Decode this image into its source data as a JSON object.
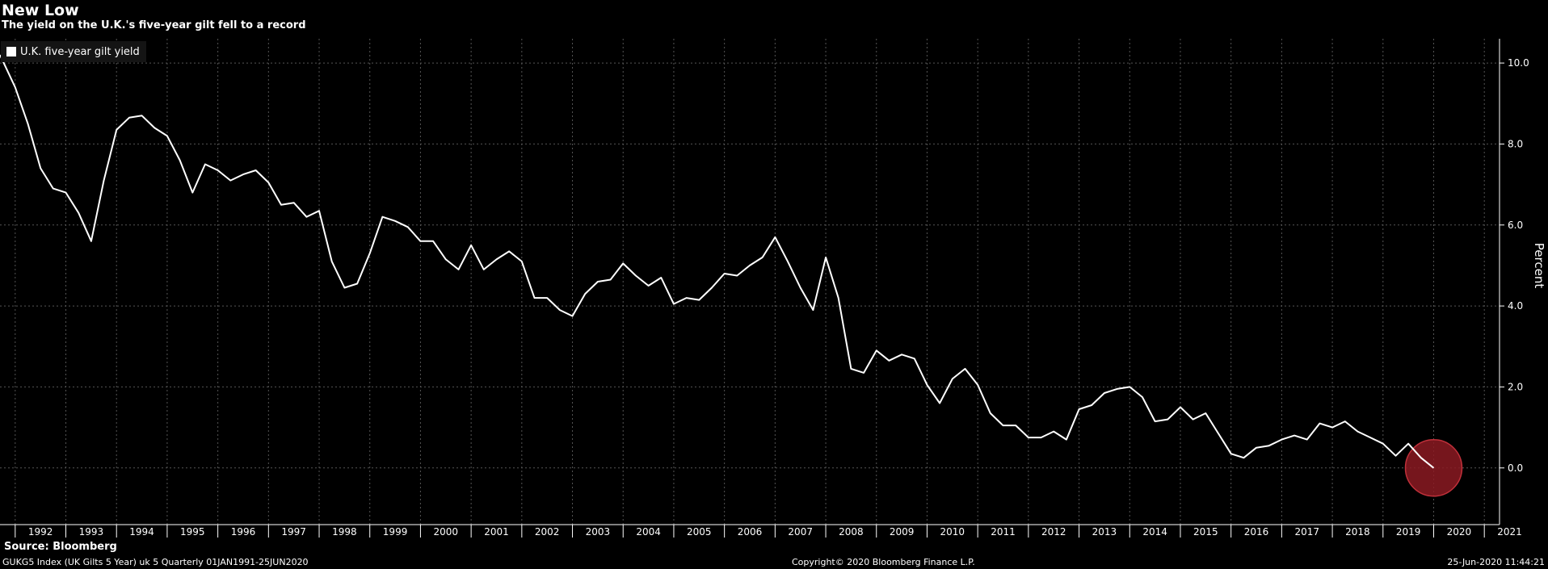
{
  "header": {
    "title": "New Low",
    "subtitle": "The yield on the U.K.'s five-year gilt fell to a record"
  },
  "footer": {
    "source": "Source: Bloomberg",
    "index": "GUKG5 Index (UK Gilts 5 Year) uk 5  Quarterly 01JAN1991-25JUN2020",
    "copyright": "Copyright© 2020 Bloomberg Finance L.P.",
    "timestamp": "25-Jun-2020 11:44:21"
  },
  "colors": {
    "background": "#000000",
    "line": "#ffffff",
    "highlight": "#8b1a22",
    "grid": "#555555"
  },
  "chart_data": {
    "type": "line",
    "ylabel": "Percent",
    "ylim": [
      -1.4,
      10.6
    ],
    "yticks": [
      0,
      2,
      4,
      6,
      8,
      10
    ],
    "ytick_labels": [
      "0.0",
      "2.0",
      "4.0",
      "6.0",
      "8.0",
      "10.0"
    ],
    "xlim": [
      1991.7,
      2021.3
    ],
    "xtick_labels": [
      "1992",
      "1993",
      "1994",
      "1995",
      "1996",
      "1997",
      "1998",
      "1999",
      "2000",
      "2001",
      "2002",
      "2003",
      "2004",
      "2005",
      "2006",
      "2007",
      "2008",
      "2009",
      "2010",
      "2011",
      "2012",
      "2013",
      "2014",
      "2015",
      "2016",
      "2017",
      "2018",
      "2019",
      "2020",
      "2021"
    ],
    "grid": true,
    "legend_position": "top-left",
    "series": [
      {
        "name": "U.K. five-year gilt yield",
        "x": [
          1991.7,
          1992.0,
          1992.25,
          1992.5,
          1992.75,
          1993.0,
          1993.25,
          1993.5,
          1993.75,
          1994.0,
          1994.25,
          1994.5,
          1994.75,
          1995.0,
          1995.25,
          1995.5,
          1995.75,
          1996.0,
          1996.25,
          1996.5,
          1996.75,
          1997.0,
          1997.25,
          1997.5,
          1997.75,
          1998.0,
          1998.25,
          1998.5,
          1998.75,
          1999.0,
          1999.25,
          1999.5,
          1999.75,
          2000.0,
          2000.25,
          2000.5,
          2000.75,
          2001.0,
          2001.25,
          2001.5,
          2001.75,
          2002.0,
          2002.25,
          2002.5,
          2002.75,
          2003.0,
          2003.25,
          2003.5,
          2003.75,
          2004.0,
          2004.25,
          2004.5,
          2004.75,
          2005.0,
          2005.25,
          2005.5,
          2005.75,
          2006.0,
          2006.25,
          2006.5,
          2006.75,
          2007.0,
          2007.25,
          2007.5,
          2007.75,
          2008.0,
          2008.25,
          2008.5,
          2008.75,
          2009.0,
          2009.25,
          2009.5,
          2009.75,
          2010.0,
          2010.25,
          2010.5,
          2010.75,
          2011.0,
          2011.25,
          2011.5,
          2011.75,
          2012.0,
          2012.25,
          2012.5,
          2012.75,
          2013.0,
          2013.25,
          2013.5,
          2013.75,
          2014.0,
          2014.25,
          2014.5,
          2014.75,
          2015.0,
          2015.25,
          2015.5,
          2015.75,
          2016.0,
          2016.25,
          2016.5,
          2016.75,
          2017.0,
          2017.25,
          2017.5,
          2017.75,
          2018.0,
          2018.25,
          2018.5,
          2018.75,
          2019.0,
          2019.25,
          2019.5,
          2019.75,
          2020.0
        ],
        "values": [
          10.2,
          9.4,
          8.5,
          7.4,
          6.9,
          6.8,
          6.3,
          5.6,
          7.1,
          8.35,
          8.65,
          8.7,
          8.4,
          8.2,
          7.6,
          6.8,
          7.5,
          7.35,
          7.1,
          7.25,
          7.35,
          7.05,
          6.5,
          6.55,
          6.2,
          6.35,
          5.1,
          4.45,
          4.55,
          5.3,
          6.2,
          6.1,
          5.95,
          5.6,
          5.6,
          5.15,
          4.9,
          5.5,
          4.9,
          5.15,
          5.35,
          5.1,
          4.2,
          4.2,
          3.9,
          3.75,
          4.3,
          4.6,
          4.65,
          5.05,
          4.75,
          4.5,
          4.7,
          4.05,
          4.2,
          4.15,
          4.45,
          4.8,
          4.75,
          5.0,
          5.2,
          5.7,
          5.1,
          4.45,
          3.9,
          5.2,
          4.2,
          2.45,
          2.35,
          2.9,
          2.65,
          2.8,
          2.7,
          2.05,
          1.6,
          2.2,
          2.45,
          2.05,
          1.35,
          1.05,
          1.05,
          0.75,
          0.75,
          0.9,
          0.7,
          1.45,
          1.55,
          1.85,
          1.95,
          2.0,
          1.75,
          1.15,
          1.2,
          1.5,
          1.2,
          1.35,
          0.85,
          0.35,
          0.25,
          0.5,
          0.55,
          0.7,
          0.8,
          0.7,
          1.1,
          1.0,
          1.15,
          0.9,
          0.75,
          0.6,
          0.3,
          0.6,
          0.25,
          0.0
        ]
      }
    ],
    "highlight": {
      "x": 2020.0,
      "y": 0.0
    }
  }
}
